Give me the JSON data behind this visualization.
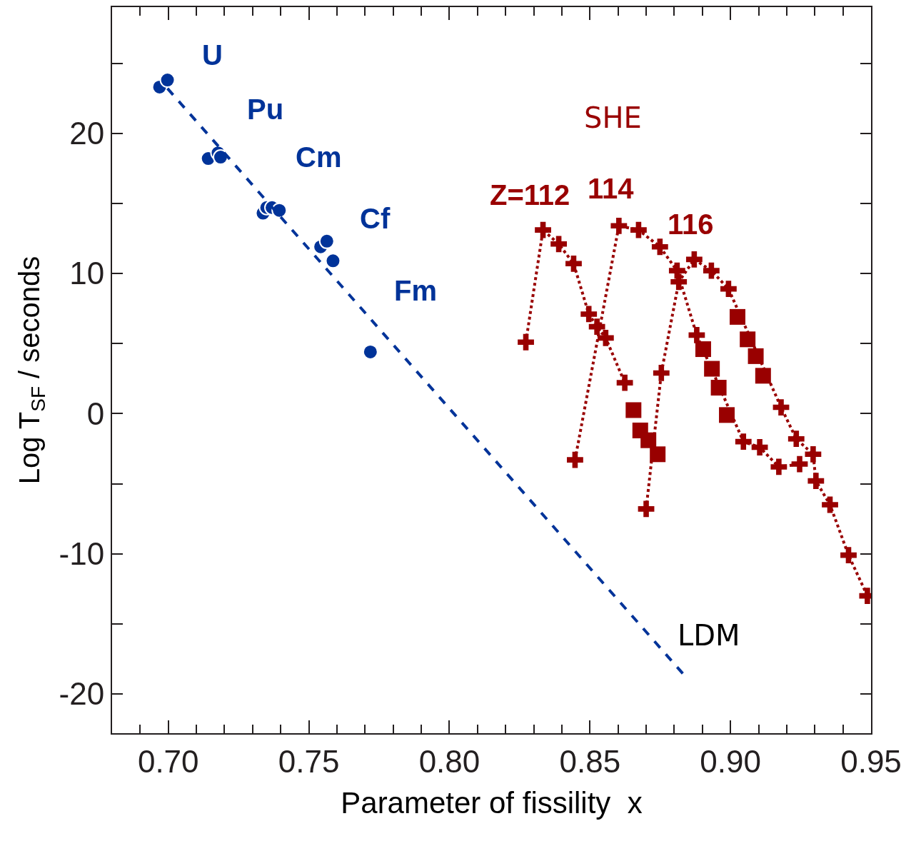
{
  "chart_data": {
    "type": "scatter",
    "xlabel": "Parameter of fissility  x",
    "ylabel": "Log T$_{SF}$ / seconds",
    "xlim": [
      0.68,
      0.95
    ],
    "ylim": [
      -22.8,
      29
    ],
    "xticks": [
      {
        "value": 0.69,
        "label": null
      },
      {
        "value": 0.7,
        "label": "0.70"
      },
      {
        "value": 0.71,
        "label": null
      },
      {
        "value": 0.72,
        "label": null
      },
      {
        "value": 0.73,
        "label": null
      },
      {
        "value": 0.74,
        "label": null
      },
      {
        "value": 0.75,
        "label": "0.75"
      },
      {
        "value": 0.76,
        "label": null
      },
      {
        "value": 0.77,
        "label": null
      },
      {
        "value": 0.78,
        "label": null
      },
      {
        "value": 0.79,
        "label": null
      },
      {
        "value": 0.8,
        "label": "0.80"
      },
      {
        "value": 0.81,
        "label": null
      },
      {
        "value": 0.82,
        "label": null
      },
      {
        "value": 0.83,
        "label": null
      },
      {
        "value": 0.84,
        "label": null
      },
      {
        "value": 0.85,
        "label": "0.85"
      },
      {
        "value": 0.86,
        "label": null
      },
      {
        "value": 0.87,
        "label": null
      },
      {
        "value": 0.88,
        "label": null
      },
      {
        "value": 0.89,
        "label": null
      },
      {
        "value": 0.9,
        "label": "0.90"
      },
      {
        "value": 0.91,
        "label": null
      },
      {
        "value": 0.92,
        "label": null
      },
      {
        "value": 0.93,
        "label": null
      },
      {
        "value": 0.94,
        "label": null
      },
      {
        "value": 0.95,
        "label": "0.95"
      }
    ],
    "yticks": [
      {
        "value": -20,
        "label": "-20"
      },
      {
        "value": -15,
        "label": null
      },
      {
        "value": -10,
        "label": "-10"
      },
      {
        "value": -5,
        "label": null
      },
      0,
      {
        "value": 5,
        "label": null
      },
      10,
      {
        "value": 15,
        "label": null
      },
      20,
      {
        "value": 25,
        "label": null
      }
    ],
    "legend": false,
    "series": [
      {
        "marker": "circle",
        "color": "#003399",
        "x": [
          0.6969,
          0.6997,
          0.7142,
          0.7177,
          0.7186,
          0.7337,
          0.735,
          0.7369,
          0.7395,
          0.7542,
          0.7564,
          0.7586,
          0.7719
        ],
        "values": [
          23.3,
          23.8,
          18.2,
          18.6,
          18.3,
          14.3,
          14.7,
          14.7,
          14.5,
          11.9,
          12.3,
          10.9,
          4.4
        ]
      },
      {
        "type": "line",
        "marker": "none",
        "line_style": "dashed",
        "color": "#003399",
        "x": [
          0.6997,
          0.8833
        ],
        "values": [
          23.2,
          -18.6
        ]
      },
      {
        "type": "line",
        "marker": "cross",
        "line_style": "dotted",
        "color": "#990000",
        "x": [
          0.8272,
          0.8333,
          0.8389,
          0.8442,
          0.8496,
          0.8525,
          0.8556,
          0.8624
        ],
        "values": [
          5.1,
          13.1,
          12.1,
          10.7,
          7.1,
          6.2,
          5.4,
          2.2
        ]
      },
      {
        "type": "line",
        "marker": "cross",
        "line_style": "dotted",
        "color": "#990000",
        "x": [
          0.8447,
          0.8603,
          0.8673,
          0.8749,
          0.881,
          0.888,
          0.9046,
          0.9104,
          0.9172,
          0.9246
        ],
        "values": [
          -3.3,
          13.4,
          13.1,
          11.9,
          10.2,
          5.6,
          -2.0,
          -2.4,
          -3.8,
          -3.6
        ]
      },
      {
        "type": "line",
        "marker": "cross",
        "line_style": "dotted",
        "color": "#990000",
        "x": [
          0.87,
          0.8754,
          0.8816,
          0.8871,
          0.8932,
          0.8993,
          0.918,
          0.9234,
          0.9294,
          0.9304,
          0.9354,
          0.942,
          0.9487
        ],
        "values": [
          -6.8,
          2.9,
          9.4,
          11.0,
          10.2,
          8.9,
          0.45,
          -1.8,
          -2.9,
          -4.8,
          -6.5,
          -10.1,
          -13.0
        ]
      },
      {
        "marker": "square",
        "color": "#990000",
        "x": [
          0.8655,
          0.8679,
          0.8708,
          0.8741,
          0.8903,
          0.8934,
          0.8958,
          0.8987,
          0.9025,
          0.9061,
          0.909,
          0.9116
        ],
        "values": [
          0.25,
          -1.2,
          -1.9,
          -2.9,
          4.6,
          3.2,
          1.85,
          -0.1,
          6.9,
          5.3,
          4.1,
          2.7
        ]
      }
    ],
    "annotations": [
      "U",
      "Pu",
      "Cm",
      "Cf",
      "Fm",
      "SHE",
      "Z=112",
      "114",
      "116",
      "LDM"
    ]
  }
}
